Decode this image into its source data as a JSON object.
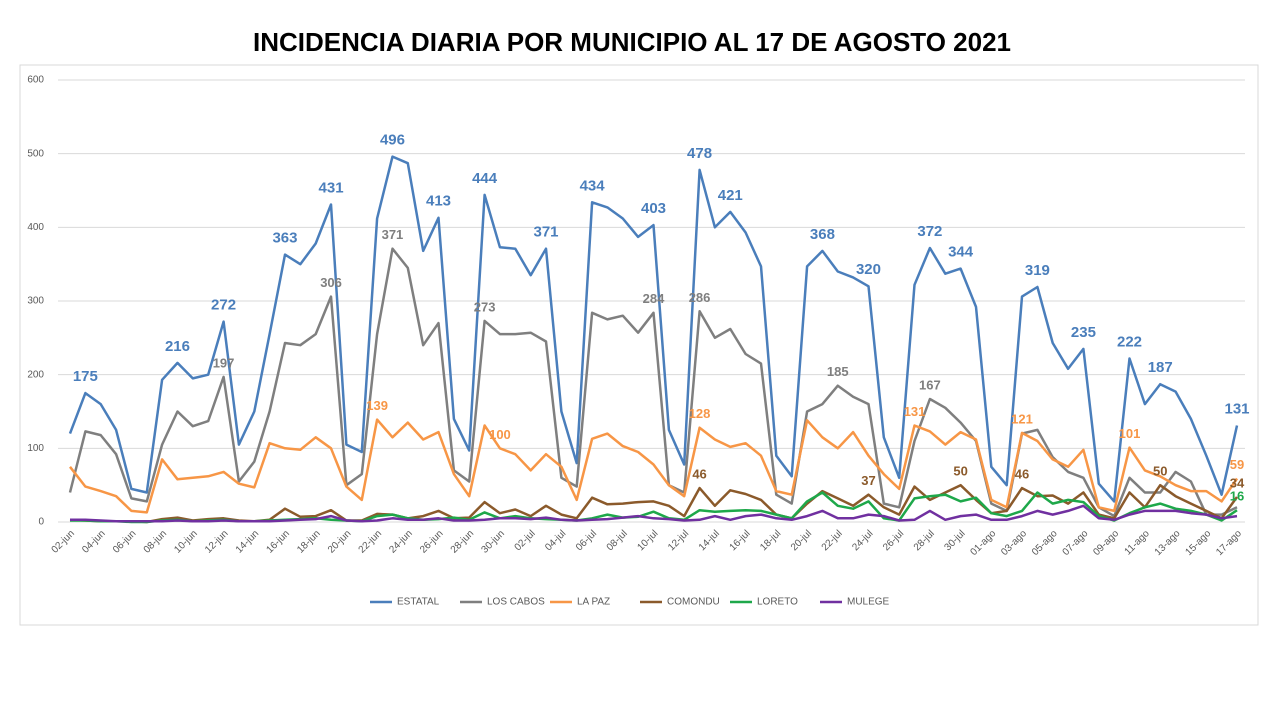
{
  "chart_data": {
    "type": "line",
    "title": "INCIDENCIA DIARIA POR MUNICIPIO AL 17 DE AGOSTO 2021",
    "categories": [
      "02-jun",
      null,
      "04-jun",
      null,
      "06-jun",
      null,
      "08-jun",
      null,
      "10-jun",
      null,
      "12-jun",
      null,
      "14-jun",
      null,
      "16-jun",
      null,
      "18-jun",
      null,
      "20-jun",
      null,
      "22-jun",
      null,
      "24-jun",
      null,
      "26-jun",
      null,
      "28-jun",
      null,
      "30-jun",
      null,
      "02-jul",
      null,
      "04-jul",
      null,
      "06-jul",
      null,
      "08-jul",
      null,
      "10-jul",
      null,
      "12-jul",
      null,
      "14-jul",
      null,
      "16-jul",
      null,
      "18-jul",
      null,
      "20-jul",
      null,
      "22-jul",
      null,
      "24-jul",
      null,
      "26-jul",
      null,
      "28-jul",
      null,
      "30-jul",
      null,
      "01-ago",
      null,
      "03-ago",
      null,
      "05-ago",
      null,
      "07-ago",
      null,
      "09-ago",
      null,
      "11-ago",
      null,
      "13-ago",
      null,
      "15-ago",
      null,
      "17-ago"
    ],
    "ylim": [
      0,
      600
    ],
    "yticks": [
      0,
      100,
      200,
      300,
      400,
      500,
      600
    ],
    "grid": true,
    "legend": "bottom",
    "series": [
      {
        "name": "ESTATAL",
        "color": "#4a7ebb",
        "values": [
          120,
          175,
          160,
          125,
          45,
          40,
          193,
          216,
          195,
          200,
          272,
          105,
          150,
          255,
          363,
          350,
          378,
          431,
          105,
          95,
          412,
          496,
          487,
          368,
          413,
          140,
          97,
          444,
          373,
          371,
          335,
          371,
          150,
          80,
          434,
          427,
          412,
          387,
          403,
          125,
          78,
          478,
          400,
          421,
          393,
          347,
          90,
          62,
          347,
          368,
          340,
          332,
          320,
          115,
          60,
          322,
          372,
          337,
          344,
          292,
          75,
          50,
          306,
          319,
          243,
          208,
          235,
          52,
          28,
          222,
          160,
          187,
          177,
          140,
          90,
          37,
          131
        ],
        "value_labels": [
          null,
          "175",
          null,
          null,
          null,
          null,
          null,
          "216",
          null,
          null,
          "272",
          null,
          null,
          null,
          "363",
          null,
          null,
          "431",
          null,
          null,
          null,
          "496",
          null,
          null,
          "413",
          null,
          null,
          "444",
          null,
          null,
          null,
          "371",
          null,
          null,
          "434",
          null,
          null,
          null,
          "403",
          null,
          null,
          "478",
          null,
          "421",
          null,
          null,
          null,
          null,
          null,
          "368",
          null,
          null,
          "320",
          null,
          null,
          null,
          "372",
          null,
          "344",
          null,
          null,
          null,
          null,
          "319",
          null,
          null,
          "235",
          null,
          null,
          "222",
          null,
          "187",
          null,
          null,
          null,
          null,
          "131"
        ]
      },
      {
        "name": "LOS CABOS",
        "color": "#7f7f7f",
        "values": [
          40,
          123,
          118,
          92,
          32,
          28,
          105,
          150,
          130,
          137,
          197,
          55,
          82,
          150,
          243,
          240,
          255,
          306,
          50,
          65,
          255,
          371,
          345,
          240,
          270,
          70,
          55,
          273,
          255,
          255,
          257,
          245,
          60,
          48,
          284,
          275,
          280,
          257,
          284,
          50,
          40,
          286,
          250,
          262,
          228,
          215,
          37,
          25,
          150,
          160,
          185,
          170,
          160,
          25,
          20,
          110,
          167,
          155,
          135,
          110,
          25,
          15,
          120,
          125,
          88,
          68,
          60,
          20,
          8,
          60,
          40,
          40,
          68,
          55,
          10,
          10,
          20
        ],
        "value_labels": [
          null,
          null,
          null,
          null,
          null,
          null,
          null,
          null,
          null,
          null,
          "197",
          null,
          null,
          null,
          null,
          null,
          null,
          "306",
          null,
          null,
          null,
          "371",
          null,
          null,
          null,
          null,
          null,
          "273",
          null,
          null,
          null,
          null,
          null,
          null,
          null,
          null,
          null,
          null,
          "284",
          null,
          null,
          "286",
          null,
          null,
          null,
          null,
          null,
          null,
          null,
          null,
          "185",
          null,
          null,
          null,
          null,
          null,
          "167",
          null,
          null,
          null,
          null,
          null,
          null,
          null,
          null,
          null,
          null,
          null,
          null,
          null,
          null,
          null,
          null,
          null,
          null,
          null,
          null
        ]
      },
      {
        "name": "LA PAZ",
        "color": "#f79646",
        "values": [
          75,
          48,
          42,
          35,
          15,
          13,
          85,
          58,
          60,
          62,
          68,
          52,
          47,
          107,
          100,
          98,
          115,
          100,
          48,
          30,
          139,
          115,
          135,
          112,
          122,
          65,
          35,
          131,
          100,
          92,
          70,
          92,
          75,
          30,
          113,
          120,
          103,
          95,
          78,
          50,
          35,
          128,
          112,
          102,
          107,
          90,
          42,
          37,
          138,
          115,
          100,
          122,
          90,
          65,
          45,
          131,
          123,
          105,
          122,
          112,
          30,
          20,
          121,
          110,
          85,
          75,
          98,
          20,
          15,
          101,
          70,
          62,
          50,
          42,
          42,
          28,
          59
        ],
        "value_labels": [
          null,
          null,
          null,
          null,
          null,
          null,
          null,
          null,
          null,
          null,
          null,
          null,
          null,
          null,
          null,
          null,
          null,
          null,
          null,
          null,
          "139",
          null,
          null,
          null,
          null,
          null,
          null,
          null,
          "100",
          null,
          null,
          null,
          null,
          null,
          null,
          null,
          null,
          null,
          null,
          null,
          null,
          "128",
          null,
          null,
          null,
          null,
          null,
          null,
          null,
          null,
          null,
          null,
          null,
          null,
          null,
          "131",
          null,
          null,
          null,
          null,
          null,
          null,
          "121",
          null,
          null,
          null,
          null,
          null,
          null,
          "101",
          null,
          null,
          null,
          null,
          null,
          null,
          "59"
        ]
      },
      {
        "name": "COMONDU",
        "color": "#8b5a2b",
        "values": [
          3,
          2,
          1,
          1,
          1,
          0,
          4,
          6,
          2,
          4,
          5,
          2,
          1,
          3,
          18,
          7,
          8,
          16,
          2,
          2,
          11,
          10,
          5,
          8,
          15,
          5,
          6,
          27,
          12,
          17,
          8,
          22,
          10,
          5,
          33,
          24,
          25,
          27,
          28,
          22,
          8,
          46,
          22,
          43,
          38,
          30,
          10,
          5,
          25,
          42,
          32,
          22,
          37,
          20,
          10,
          48,
          30,
          40,
          50,
          30,
          12,
          15,
          46,
          35,
          36,
          25,
          40,
          10,
          5,
          40,
          20,
          50,
          35,
          25,
          15,
          5,
          34
        ],
        "value_labels": [
          null,
          null,
          null,
          null,
          null,
          null,
          null,
          null,
          null,
          null,
          null,
          null,
          null,
          null,
          null,
          null,
          null,
          null,
          null,
          null,
          null,
          null,
          null,
          null,
          null,
          null,
          null,
          null,
          null,
          null,
          null,
          null,
          null,
          null,
          null,
          null,
          null,
          null,
          null,
          null,
          null,
          "46",
          null,
          null,
          null,
          null,
          null,
          null,
          null,
          null,
          null,
          null,
          "37",
          null,
          null,
          null,
          null,
          null,
          "50",
          null,
          null,
          null,
          "46",
          null,
          null,
          null,
          null,
          null,
          null,
          null,
          null,
          "50",
          null,
          null,
          null,
          null,
          "34"
        ]
      },
      {
        "name": "LORETO",
        "color": "#1ea84a",
        "values": [
          2,
          2,
          1,
          1,
          0,
          0,
          2,
          3,
          1,
          2,
          3,
          1,
          1,
          2,
          3,
          4,
          5,
          3,
          2,
          1,
          8,
          10,
          5,
          3,
          4,
          6,
          3,
          13,
          5,
          8,
          5,
          4,
          3,
          2,
          5,
          10,
          6,
          7,
          14,
          5,
          3,
          16,
          14,
          15,
          16,
          15,
          10,
          5,
          28,
          40,
          22,
          18,
          28,
          5,
          2,
          32,
          35,
          37,
          28,
          33,
          12,
          8,
          15,
          40,
          25,
          30,
          27,
          8,
          2,
          12,
          20,
          25,
          18,
          15,
          10,
          2,
          16
        ],
        "value_labels": [
          null,
          null,
          null,
          null,
          null,
          null,
          null,
          null,
          null,
          null,
          null,
          null,
          null,
          null,
          null,
          null,
          null,
          null,
          null,
          null,
          null,
          null,
          null,
          null,
          null,
          null,
          null,
          null,
          null,
          null,
          null,
          null,
          null,
          null,
          null,
          null,
          null,
          null,
          null,
          null,
          null,
          null,
          null,
          null,
          null,
          null,
          null,
          null,
          null,
          null,
          null,
          null,
          null,
          null,
          null,
          null,
          null,
          null,
          null,
          null,
          null,
          null,
          null,
          null,
          null,
          null,
          null,
          null,
          null,
          null,
          null,
          null,
          null,
          null,
          null,
          null,
          "16"
        ]
      },
      {
        "name": "MULEGE",
        "color": "#7030a0",
        "values": [
          3,
          3,
          2,
          1,
          1,
          1,
          1,
          2,
          1,
          1,
          2,
          1,
          1,
          1,
          2,
          3,
          4,
          8,
          2,
          1,
          2,
          5,
          3,
          3,
          5,
          2,
          2,
          3,
          5,
          5,
          4,
          6,
          3,
          2,
          3,
          4,
          6,
          8,
          5,
          4,
          2,
          3,
          8,
          3,
          8,
          10,
          5,
          3,
          8,
          15,
          5,
          5,
          10,
          8,
          2,
          3,
          15,
          3,
          8,
          10,
          3,
          3,
          8,
          15,
          10,
          15,
          22,
          5,
          3,
          10,
          15,
          15,
          15,
          12,
          10,
          5,
          8
        ]
      }
    ]
  }
}
